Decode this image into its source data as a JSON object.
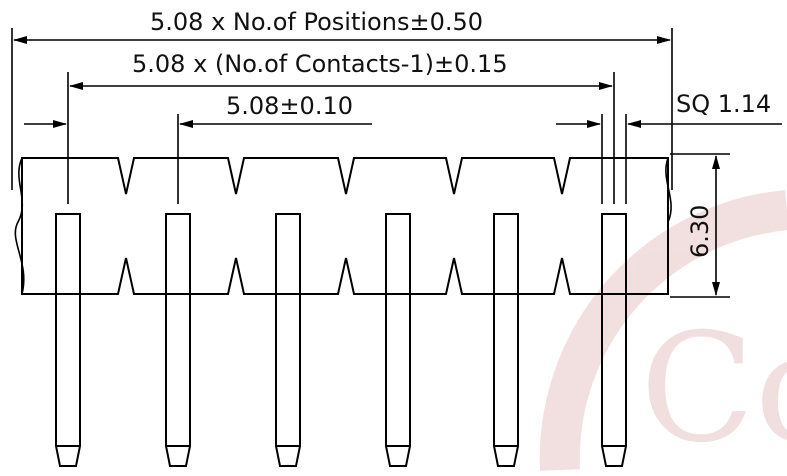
{
  "dimensions": {
    "overall_length": "5.08 x No.of Positions±0.50",
    "contact_span": "5.08 x (No.of Contacts-1)±0.15",
    "pitch": "5.08±0.10",
    "pin_square": "SQ 1.14",
    "body_height": "6.30"
  },
  "watermark": {
    "text": "Co",
    "color": "#d9a3a3"
  },
  "colors": {
    "line": "#000000",
    "background": "#ffffff"
  }
}
